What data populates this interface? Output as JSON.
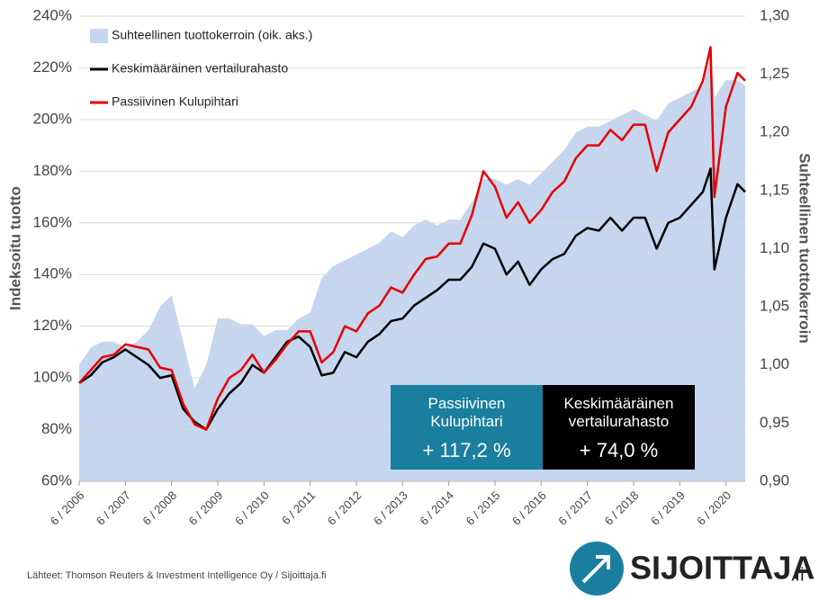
{
  "chart_data": {
    "type": "line",
    "y_label": "Indeksoitu tuotto",
    "y2_label": "Suhteellinen tuottokerroin",
    "x": [
      "2006-06",
      "2006-09",
      "2006-12",
      "2007-03",
      "2007-06",
      "2007-09",
      "2007-12",
      "2008-03",
      "2008-06",
      "2008-09",
      "2008-12",
      "2009-03",
      "2009-06",
      "2009-09",
      "2009-12",
      "2010-03",
      "2010-06",
      "2010-09",
      "2010-12",
      "2011-03",
      "2011-06",
      "2011-09",
      "2011-12",
      "2012-03",
      "2012-06",
      "2012-09",
      "2012-12",
      "2013-03",
      "2013-06",
      "2013-09",
      "2013-12",
      "2014-03",
      "2014-06",
      "2014-09",
      "2014-12",
      "2015-03",
      "2015-06",
      "2015-09",
      "2015-12",
      "2016-03",
      "2016-06",
      "2016-09",
      "2016-12",
      "2017-03",
      "2017-06",
      "2017-09",
      "2017-12",
      "2018-03",
      "2018-06",
      "2018-09",
      "2018-12",
      "2019-03",
      "2019-06",
      "2019-09",
      "2019-12",
      "2020-02",
      "2020-03",
      "2020-06",
      "2020-09",
      "2020-11"
    ],
    "series": [
      {
        "name": "Suhteellinen tuottokerroin (oik. aks.)",
        "color": "#c6d6ef",
        "kind": "area",
        "axis": "y2",
        "values": [
          1.0,
          1.015,
          1.02,
          1.02,
          1.015,
          1.02,
          1.03,
          1.05,
          1.06,
          1.02,
          0.98,
          1.0,
          1.04,
          1.04,
          1.035,
          1.035,
          1.025,
          1.03,
          1.03,
          1.04,
          1.045,
          1.075,
          1.085,
          1.09,
          1.095,
          1.1,
          1.105,
          1.115,
          1.11,
          1.12,
          1.125,
          1.12,
          1.125,
          1.125,
          1.14,
          1.16,
          1.16,
          1.155,
          1.16,
          1.155,
          1.165,
          1.175,
          1.185,
          1.2,
          1.205,
          1.205,
          1.21,
          1.215,
          1.22,
          1.215,
          1.21,
          1.225,
          1.23,
          1.235,
          1.24,
          1.265,
          1.23,
          1.245,
          1.245,
          1.24
        ]
      },
      {
        "name": "Keskimääräinen vertailurahasto",
        "color": "#000000",
        "kind": "line",
        "values": [
          98,
          101,
          106,
          108,
          111,
          108,
          105,
          100,
          101,
          88,
          83,
          80,
          88,
          94,
          98,
          105,
          102,
          108,
          114,
          116,
          112,
          101,
          102,
          110,
          108,
          114,
          117,
          122,
          123,
          128,
          131,
          134,
          138,
          138,
          143,
          152,
          150,
          140,
          145,
          136,
          142,
          146,
          148,
          155,
          158,
          157,
          162,
          157,
          162,
          162,
          150,
          160,
          162,
          167,
          172,
          181,
          142,
          162,
          175,
          172
        ]
      },
      {
        "name": "Passiivinen Kulupihtari",
        "color": "#e60000",
        "kind": "line",
        "values": [
          98,
          103,
          108,
          109,
          113,
          112,
          111,
          104,
          103,
          90,
          82,
          80,
          92,
          100,
          103,
          109,
          102,
          107,
          113,
          118,
          118,
          106,
          110,
          120,
          118,
          125,
          128,
          135,
          133,
          140,
          146,
          147,
          152,
          152,
          163,
          180,
          174,
          162,
          168,
          160,
          165,
          172,
          176,
          185,
          190,
          190,
          196,
          192,
          198,
          198,
          180,
          195,
          200,
          205,
          215,
          228,
          170,
          205,
          218,
          215
        ]
      }
    ],
    "xlim": [
      "2006-06",
      "2020-11"
    ],
    "xticks": [
      {
        "value": "2006-06",
        "label": "6 / 2006"
      },
      {
        "value": "2007-06",
        "label": "6 / 2007"
      },
      {
        "value": "2008-06",
        "label": "6 / 2008"
      },
      {
        "value": "2009-06",
        "label": "6 / 2009"
      },
      {
        "value": "2010-06",
        "label": "6 / 2010"
      },
      {
        "value": "2011-06",
        "label": "6 / 2011"
      },
      {
        "value": "2012-06",
        "label": "6 / 2012"
      },
      {
        "value": "2013-06",
        "label": "6 / 2013"
      },
      {
        "value": "2014-06",
        "label": "6 / 2014"
      },
      {
        "value": "2015-06",
        "label": "6 / 2015"
      },
      {
        "value": "2016-06",
        "label": "6 / 2016"
      },
      {
        "value": "2017-06",
        "label": "6 / 2017"
      },
      {
        "value": "2018-06",
        "label": "6 / 2018"
      },
      {
        "value": "2019-06",
        "label": "6 / 2019"
      },
      {
        "value": "2020-06",
        "label": "6 / 2020"
      }
    ],
    "ylim": [
      60,
      240
    ],
    "yticks": [
      {
        "value": 60,
        "label": "60%"
      },
      {
        "value": 80,
        "label": "80%"
      },
      {
        "value": 100,
        "label": "100%"
      },
      {
        "value": 120,
        "label": "120%"
      },
      {
        "value": 140,
        "label": "140%"
      },
      {
        "value": 160,
        "label": "160%"
      },
      {
        "value": 180,
        "label": "180%"
      },
      {
        "value": 200,
        "label": "200%"
      },
      {
        "value": 220,
        "label": "220%"
      },
      {
        "value": 240,
        "label": "240%"
      }
    ],
    "y2lim": [
      0.9,
      1.3
    ],
    "y2ticks": [
      {
        "value": 0.9,
        "label": "0,90"
      },
      {
        "value": 0.95,
        "label": "0,95"
      },
      {
        "value": 1.0,
        "label": "1,00"
      },
      {
        "value": 1.05,
        "label": "1,05"
      },
      {
        "value": 1.1,
        "label": "1,10"
      },
      {
        "value": 1.15,
        "label": "1,15"
      },
      {
        "value": 1.2,
        "label": "1,20"
      },
      {
        "value": 1.25,
        "label": "1,25"
      },
      {
        "value": 1.3,
        "label": "1,30"
      }
    ],
    "grid": true,
    "legend": "upper left",
    "annotations": [
      {
        "title": "Passiivinen Kulupihtari",
        "value": "+ 117,2 %",
        "color": "#1a7f9f"
      },
      {
        "title": "Keskimääräinen vertailurahasto",
        "value": "+ 74,0 %",
        "color": "#000000"
      }
    ]
  },
  "source": "Lähteet: Thomson Reuters & Investment Intelligence Oy / Sijoittaja.fi",
  "logo": {
    "name": "SIJOITTAJA",
    "suffix": ".fi"
  }
}
